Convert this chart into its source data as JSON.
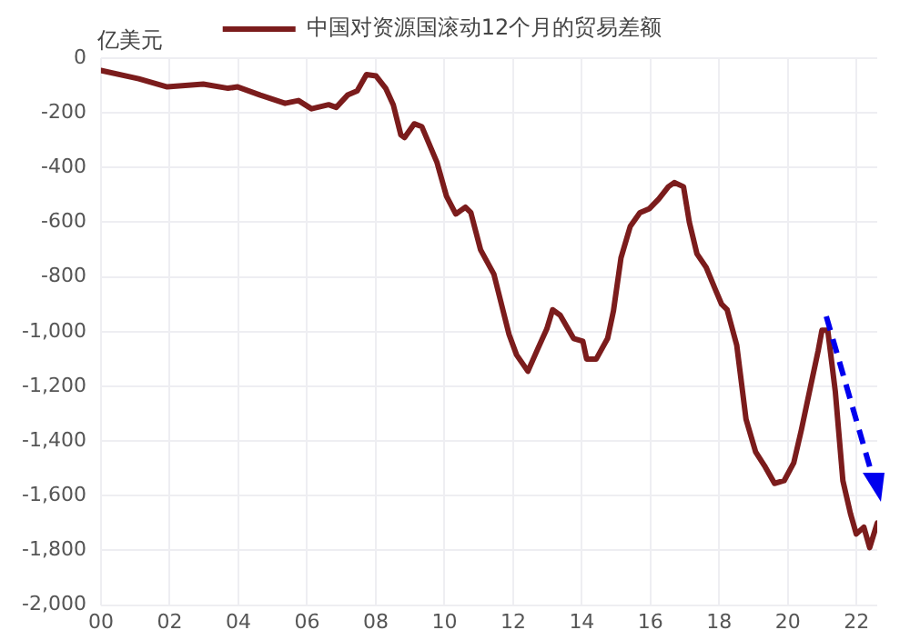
{
  "chart_data": {
    "type": "line",
    "ylabel": "亿美元",
    "series": [
      {
        "name": "中国对资源国滚动12个月的贸易差额",
        "color": "#7b1c1c",
        "x": [
          2000,
          2001.1,
          2001.93,
          2002.98,
          2003.7,
          2003.98,
          2004.64,
          2005.36,
          2005.75,
          2006.13,
          2006.63,
          2006.85,
          2007.18,
          2007.46,
          2007.73,
          2008.01,
          2008.29,
          2008.51,
          2008.73,
          2008.84,
          2009.12,
          2009.34,
          2009.78,
          2010.06,
          2010.33,
          2010.61,
          2010.77,
          2011.05,
          2011.44,
          2011.88,
          2012.1,
          2012.43,
          2012.71,
          2012.98,
          2013.15,
          2013.37,
          2013.76,
          2014.03,
          2014.14,
          2014.42,
          2014.75,
          2014.92,
          2015.14,
          2015.41,
          2015.69,
          2015.97,
          2016.24,
          2016.52,
          2016.69,
          2016.96,
          2017.13,
          2017.35,
          2017.62,
          2017.9,
          2018.07,
          2018.23,
          2018.51,
          2018.78,
          2019.06,
          2019.34,
          2019.61,
          2019.89,
          2020.17,
          2020.39,
          2020.66,
          2020.88,
          2020.99,
          2021.16,
          2021.38,
          2021.6,
          2021.82,
          2021.99,
          2022.21,
          2022.38,
          2022.6
        ],
        "values": [
          -45,
          -75,
          -105,
          -95,
          -110,
          -105,
          -135,
          -165,
          -155,
          -185,
          -170,
          -180,
          -135,
          -120,
          -60,
          -65,
          -110,
          -170,
          -280,
          -290,
          -240,
          -250,
          -380,
          -505,
          -570,
          -545,
          -565,
          -700,
          -790,
          -1010,
          -1085,
          -1145,
          -1065,
          -990,
          -920,
          -940,
          -1025,
          -1035,
          -1100,
          -1100,
          -1025,
          -925,
          -730,
          -615,
          -565,
          -550,
          -515,
          -470,
          -455,
          -470,
          -600,
          -715,
          -765,
          -850,
          -900,
          -920,
          -1050,
          -1320,
          -1440,
          -1495,
          -1555,
          -1545,
          -1480,
          -1360,
          -1200,
          -1070,
          -995,
          -995,
          -1220,
          -1545,
          -1665,
          -1740,
          -1715,
          -1790,
          -1700
        ]
      }
    ],
    "xlim": [
      2000,
      2022.6
    ],
    "xticks": [
      {
        "value": 2000,
        "label": "00"
      },
      {
        "value": 2002,
        "label": "02"
      },
      {
        "value": 2004,
        "label": "04"
      },
      {
        "value": 2006,
        "label": "06"
      },
      {
        "value": 2008,
        "label": "08"
      },
      {
        "value": 2010,
        "label": "10"
      },
      {
        "value": 2012,
        "label": "12"
      },
      {
        "value": 2014,
        "label": "14"
      },
      {
        "value": 2016,
        "label": "16"
      },
      {
        "value": 2018,
        "label": "18"
      },
      {
        "value": 2020,
        "label": "20"
      },
      {
        "value": 2022,
        "label": "22"
      }
    ],
    "ylim": [
      -2000,
      0
    ],
    "yticks": [
      {
        "value": -2000,
        "label": "-2,000"
      },
      {
        "value": -1800,
        "label": "-1,800"
      },
      {
        "value": -1600,
        "label": "-1,600"
      },
      {
        "value": -1400,
        "label": "-1,400"
      },
      {
        "value": -1200,
        "label": "-1,200"
      },
      {
        "value": -1000,
        "label": "-1,000"
      },
      -800,
      -600,
      -400,
      -200,
      0
    ],
    "grid": true,
    "legend": "top",
    "marker": "none",
    "line_style": "solid"
  }
}
